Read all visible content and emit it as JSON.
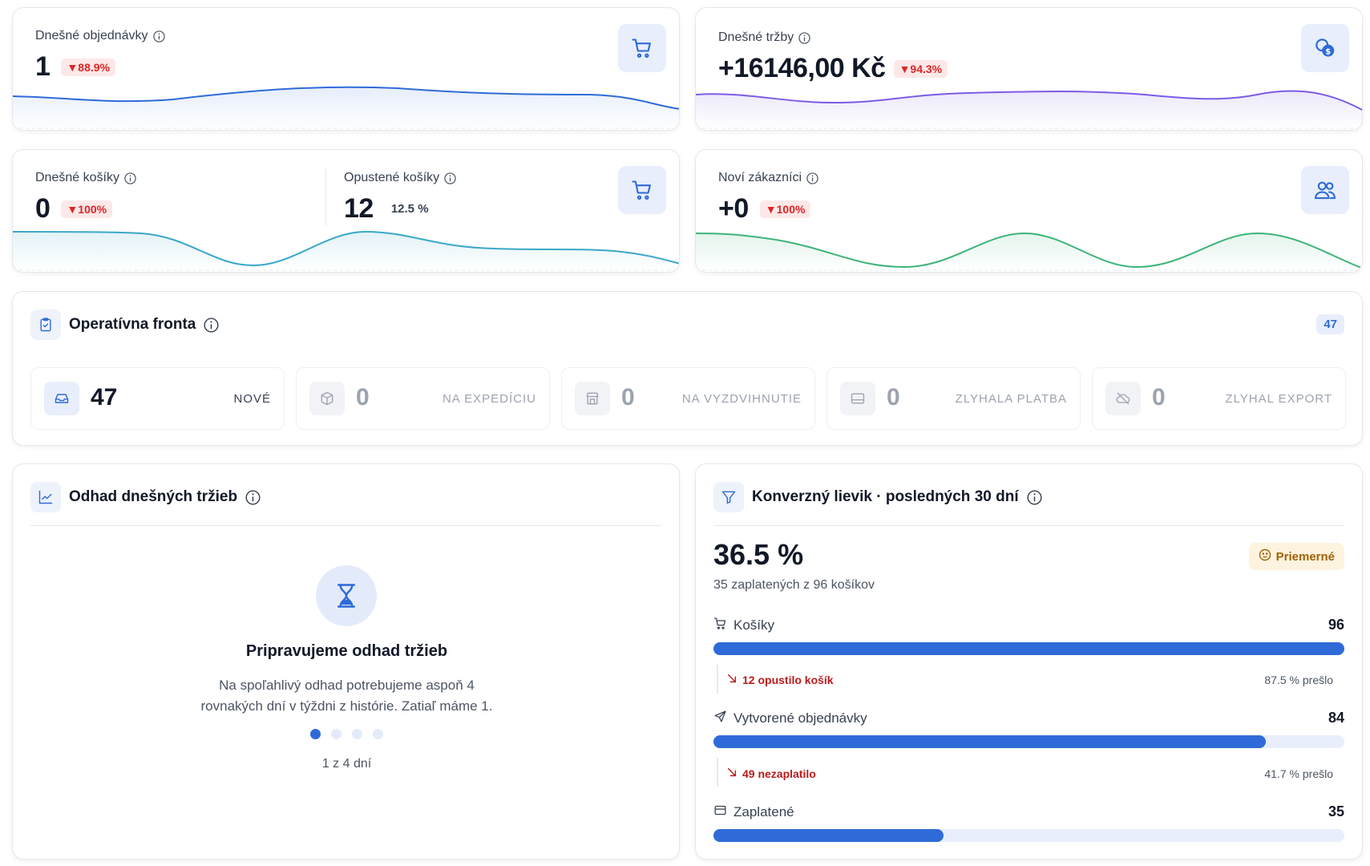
{
  "orders": {
    "label": "Dnešné objednávky",
    "value": "1",
    "change": "▼88.9%",
    "icon": "cart-icon"
  },
  "revenue": {
    "label": "Dnešné tržby",
    "value": "+16146,00 Kč",
    "change": "▼94.3%",
    "icon": "coins-dollar-icon"
  },
  "carts": {
    "label": "Dnešné košíky",
    "value": "0",
    "change": "▼100%",
    "abandoned_label": "Opustené košíky",
    "abandoned_value": "12",
    "abandoned_pct": "12.5 %",
    "icon": "cart-icon"
  },
  "customers": {
    "label": "Noví zákazníci",
    "value": "+0",
    "change": "▼100%",
    "icon": "users-icon"
  },
  "queue": {
    "title": "Operatívna fronta",
    "total": "47",
    "tiles": [
      {
        "value": "47",
        "label": "NOVÉ",
        "icon": "inbox-icon"
      },
      {
        "value": "0",
        "label": "NA EXPEDÍCIU",
        "icon": "package-icon"
      },
      {
        "value": "0",
        "label": "NA VYZDVIHNUTIE",
        "icon": "store-icon"
      },
      {
        "value": "0",
        "label": "ZLYHALA PLATBA",
        "icon": "credit-card-icon"
      },
      {
        "value": "0",
        "label": "ZLYHAL EXPORT",
        "icon": "cloud-off-icon"
      }
    ]
  },
  "forecast": {
    "title": "Odhad dnešných tržieb",
    "heading": "Pripravujeme odhad tržieb",
    "text_line1": "Na spoľahlivý odhad potrebujeme aspoň 4",
    "text_line2": "rovnakých dní v týždni z histórie. Zatiaľ máme 1.",
    "progress": "1 z 4 dní",
    "days_have": 1,
    "days_needed": 4
  },
  "funnel": {
    "title": "Konverzný lievik · posledných 30 dní",
    "rate": "36.5 %",
    "subtitle": "35 zaplatených z 96 košíkov",
    "rating": "Priemerné",
    "steps": [
      {
        "label": "Košíky",
        "value": "96",
        "fraction": 1.0,
        "icon": "cart-icon"
      },
      {
        "label": "Vytvorené objednávky",
        "value": "84",
        "fraction": 0.875,
        "icon": "send-icon"
      },
      {
        "label": "Zaplatené",
        "value": "35",
        "fraction": 0.365,
        "icon": "card-icon"
      }
    ],
    "drops": [
      {
        "text": "12 opustilo košík",
        "passed": "87.5 % prešlo"
      },
      {
        "text": "49 nezaplatilo",
        "passed": "41.7 % prešlo"
      }
    ]
  },
  "colors": {
    "accent": "#2f6bd8",
    "orders_line": "#2f6bd8",
    "revenue_line": "#7c5ce6",
    "carts_line": "#3aa8c8",
    "customers_line": "#3db47a",
    "down": "#dc2626"
  }
}
